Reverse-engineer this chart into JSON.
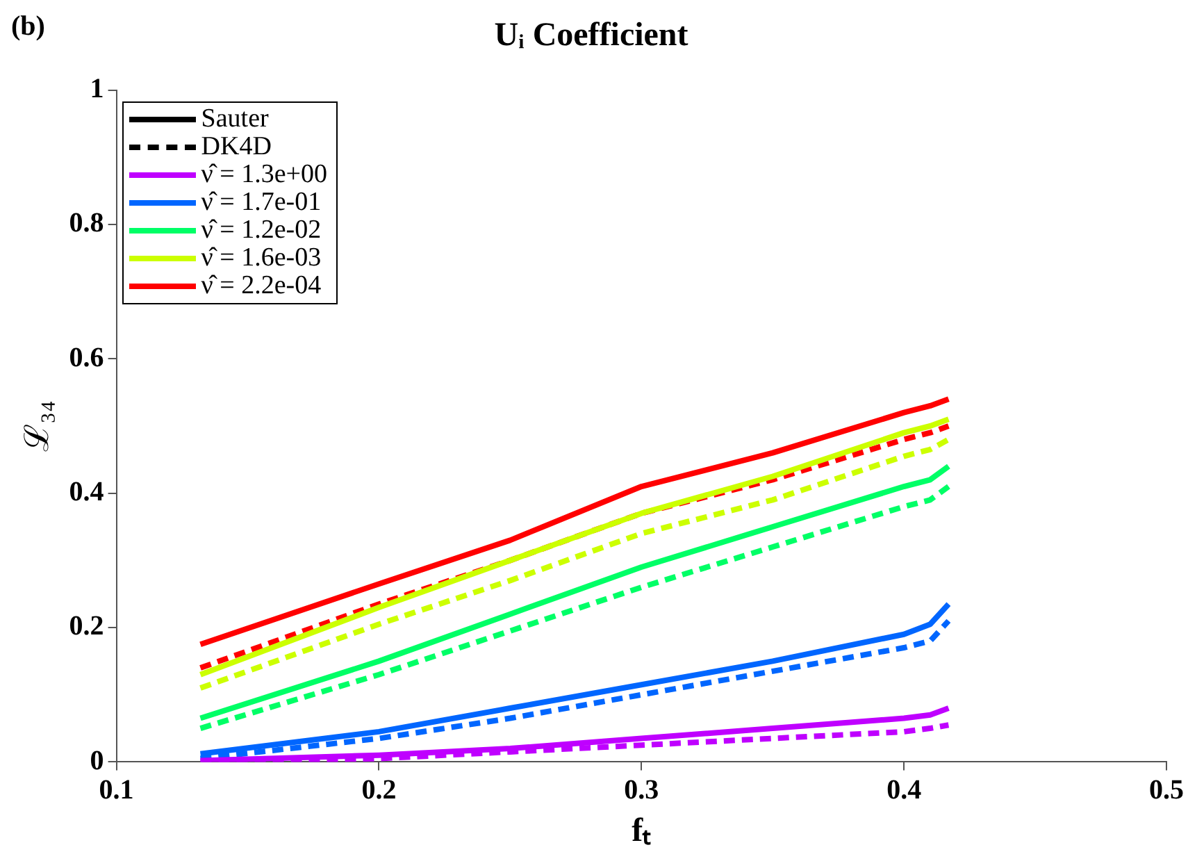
{
  "chart_data": {
    "type": "line",
    "title": "Uᵢ Coefficient",
    "xlabel": "fₜ",
    "ylabel": "ℒ₃₄",
    "annotations": [
      "(b)"
    ],
    "x": [
      0.132,
      0.2,
      0.25,
      0.3,
      0.35,
      0.4,
      0.41,
      0.417
    ],
    "xlim": [
      0.1,
      0.5
    ],
    "xticks": [
      0.1,
      0.2,
      0.3,
      0.4,
      0.5
    ],
    "ylim": [
      0,
      1
    ],
    "yticks": [
      0,
      0.2,
      0.4,
      0.6,
      0.8,
      1
    ],
    "grid": false,
    "legend": "top left",
    "marker": "none",
    "series": [
      {
        "name": "Sauter",
        "color": "#000000",
        "line_style": "solid",
        "values": [
          null,
          null,
          null,
          null,
          null,
          null,
          null,
          null
        ]
      },
      {
        "name": "DK4D",
        "color": "#000000",
        "line_style": "dashed",
        "values": [
          null,
          null,
          null,
          null,
          null,
          null,
          null,
          null
        ]
      },
      {
        "name": "ν̂ = 1.3e+00",
        "color": "#bf00ff",
        "line_style": "solid",
        "values": [
          0.002,
          0.01,
          0.02,
          0.035,
          0.05,
          0.065,
          0.07,
          0.08
        ]
      },
      {
        "name": "ν̂ = 1.7e-01",
        "color": "#0066ff",
        "line_style": "solid",
        "values": [
          0.012,
          0.045,
          0.08,
          0.115,
          0.15,
          0.19,
          0.205,
          0.235
        ]
      },
      {
        "name": "ν̂ = 1.2e-02",
        "color": "#00ff66",
        "line_style": "solid",
        "values": [
          0.065,
          0.15,
          0.22,
          0.29,
          0.35,
          0.41,
          0.42,
          0.44
        ]
      },
      {
        "name": "ν̂ = 1.6e-03",
        "color": "#ccff00",
        "line_style": "solid",
        "values": [
          0.13,
          0.23,
          0.3,
          0.37,
          0.425,
          0.49,
          0.5,
          0.51
        ]
      },
      {
        "name": "ν̂ = 2.2e-04",
        "color": "#ff0000",
        "line_style": "solid",
        "values": [
          0.175,
          0.265,
          0.33,
          0.41,
          0.46,
          0.52,
          0.53,
          0.54
        ]
      },
      {
        "color": "#bf00ff",
        "line_style": "dashed",
        "values": [
          0,
          0.005,
          0.015,
          0.025,
          0.035,
          0.045,
          0.05,
          0.055
        ]
      },
      {
        "color": "#0066ff",
        "line_style": "dashed",
        "values": [
          0.005,
          0.035,
          0.065,
          0.1,
          0.135,
          0.17,
          0.18,
          0.21
        ]
      },
      {
        "color": "#00ff66",
        "line_style": "dashed",
        "values": [
          0.05,
          0.13,
          0.195,
          0.26,
          0.32,
          0.38,
          0.39,
          0.41
        ]
      },
      {
        "color": "#ccff00",
        "line_style": "dashed",
        "values": [
          0.11,
          0.205,
          0.27,
          0.34,
          0.39,
          0.455,
          0.465,
          0.48
        ]
      },
      {
        "color": "#ff0000",
        "line_style": "dashed",
        "values": [
          0.14,
          0.235,
          0.3,
          0.37,
          0.42,
          0.48,
          0.49,
          0.5
        ]
      }
    ]
  }
}
